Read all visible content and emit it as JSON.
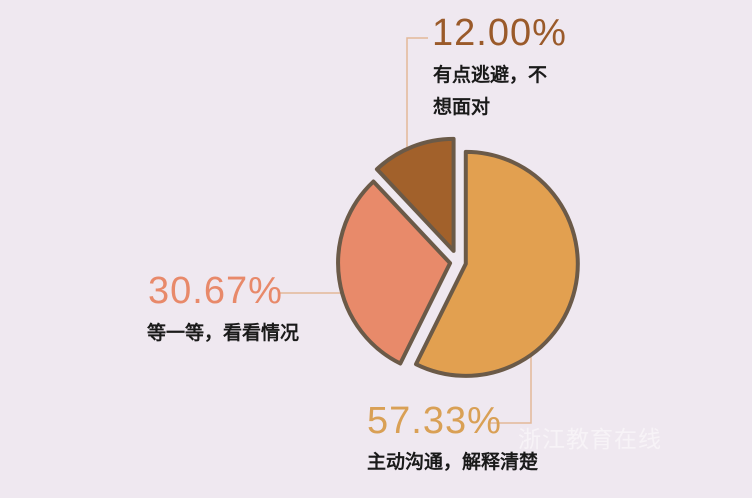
{
  "chart_data": {
    "type": "pie",
    "slices": [
      {
        "label": "主动沟通，解释清楚",
        "value": 57.33,
        "value_label": "57.33%",
        "color": "#e2a050",
        "label_color": "#d9a055"
      },
      {
        "label": "等一等，看看情况",
        "value": 30.67,
        "value_label": "30.67%",
        "color": "#e88a6a",
        "label_color": "#e8896a"
      },
      {
        "label": "有点逃避，不想面对",
        "value": 12.0,
        "value_label": "12.00%",
        "color": "#a2612b",
        "label_color": "#9a5a2a"
      }
    ],
    "label_lines": {
      "s2": [
        "有点逃避，不",
        "想面对"
      ]
    },
    "outline_color": "#6b5a48",
    "background": "#efe8f0"
  },
  "watermark": "浙江教育在线"
}
